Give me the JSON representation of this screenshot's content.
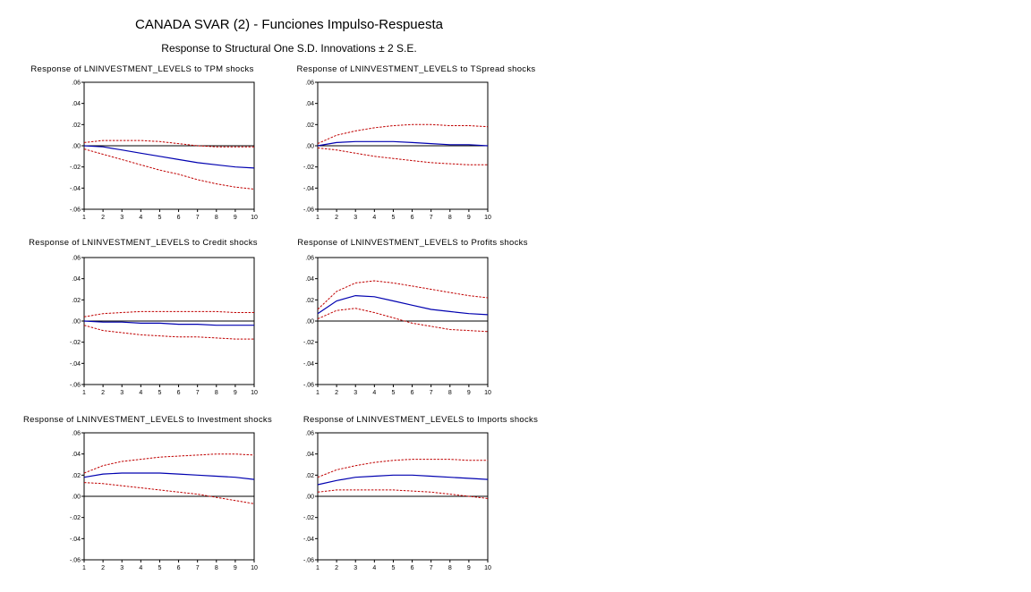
{
  "title": "CANADA SVAR (2) - Funciones Impulso-Respuesta",
  "subtitle": "Response to Structural One S.D. Innovations ± 2 S.E.",
  "colors": {
    "response": "#0000b0",
    "band": "#c00000",
    "zero": "#000000"
  },
  "chart_data": [
    {
      "type": "line",
      "title": "Response of LNINVESTMENT_LEVELS to TPM shocks",
      "x": [
        1,
        2,
        3,
        4,
        5,
        6,
        7,
        8,
        9,
        10
      ],
      "ylim": [
        -0.06,
        0.06
      ],
      "yticks": [
        ".06",
        ".04",
        ".02",
        ".00",
        "-.02",
        "-.04",
        "-.06"
      ],
      "series": [
        {
          "role": "response",
          "values": [
            0.0,
            -0.001,
            -0.004,
            -0.007,
            -0.01,
            -0.013,
            -0.016,
            -0.018,
            -0.02,
            -0.021
          ]
        },
        {
          "role": "upper",
          "values": [
            0.003,
            0.005,
            0.005,
            0.005,
            0.004,
            0.002,
            0.0,
            -0.001,
            -0.001,
            -0.001
          ]
        },
        {
          "role": "lower",
          "values": [
            -0.003,
            -0.008,
            -0.013,
            -0.018,
            -0.023,
            -0.027,
            -0.032,
            -0.036,
            -0.039,
            -0.041
          ]
        }
      ]
    },
    {
      "type": "line",
      "title": "Response of LNINVESTMENT_LEVELS to TSpread shocks",
      "x": [
        1,
        2,
        3,
        4,
        5,
        6,
        7,
        8,
        9,
        10
      ],
      "ylim": [
        -0.06,
        0.06
      ],
      "yticks": [
        ".06",
        ".04",
        ".02",
        ".00",
        "-.02",
        "-.04",
        "-.06"
      ],
      "series": [
        {
          "role": "response",
          "values": [
            0.0,
            0.003,
            0.004,
            0.004,
            0.004,
            0.003,
            0.002,
            0.001,
            0.001,
            0.0
          ]
        },
        {
          "role": "upper",
          "values": [
            0.002,
            0.01,
            0.014,
            0.017,
            0.019,
            0.02,
            0.02,
            0.019,
            0.019,
            0.018
          ]
        },
        {
          "role": "lower",
          "values": [
            -0.002,
            -0.004,
            -0.007,
            -0.01,
            -0.012,
            -0.014,
            -0.016,
            -0.017,
            -0.018,
            -0.018
          ]
        }
      ]
    },
    {
      "type": "line",
      "title": "Response of LNINVESTMENT_LEVELS to Credit shocks",
      "x": [
        1,
        2,
        3,
        4,
        5,
        6,
        7,
        8,
        9,
        10
      ],
      "ylim": [
        -0.06,
        0.06
      ],
      "yticks": [
        ".06",
        ".04",
        ".02",
        ".00",
        "-.02",
        "-.04",
        "-.06"
      ],
      "series": [
        {
          "role": "response",
          "values": [
            0.0,
            -0.001,
            -0.001,
            -0.002,
            -0.002,
            -0.003,
            -0.003,
            -0.004,
            -0.004,
            -0.004
          ]
        },
        {
          "role": "upper",
          "values": [
            0.004,
            0.007,
            0.008,
            0.009,
            0.009,
            0.009,
            0.009,
            0.009,
            0.008,
            0.008
          ]
        },
        {
          "role": "lower",
          "values": [
            -0.004,
            -0.009,
            -0.011,
            -0.013,
            -0.014,
            -0.015,
            -0.015,
            -0.016,
            -0.017,
            -0.017
          ]
        }
      ]
    },
    {
      "type": "line",
      "title": "Response of LNINVESTMENT_LEVELS to Profits shocks",
      "x": [
        1,
        2,
        3,
        4,
        5,
        6,
        7,
        8,
        9,
        10
      ],
      "ylim": [
        -0.06,
        0.06
      ],
      "yticks": [
        ".06",
        ".04",
        ".02",
        ".00",
        "-.02",
        "-.04",
        "-.06"
      ],
      "series": [
        {
          "role": "response",
          "values": [
            0.007,
            0.019,
            0.024,
            0.023,
            0.019,
            0.015,
            0.011,
            0.009,
            0.007,
            0.006
          ]
        },
        {
          "role": "upper",
          "values": [
            0.011,
            0.028,
            0.036,
            0.038,
            0.036,
            0.033,
            0.03,
            0.027,
            0.024,
            0.022
          ]
        },
        {
          "role": "lower",
          "values": [
            0.002,
            0.01,
            0.012,
            0.008,
            0.003,
            -0.002,
            -0.005,
            -0.008,
            -0.009,
            -0.01
          ]
        }
      ]
    },
    {
      "type": "line",
      "title": "Response of LNINVESTMENT_LEVELS to Investment shocks",
      "x": [
        1,
        2,
        3,
        4,
        5,
        6,
        7,
        8,
        9,
        10
      ],
      "ylim": [
        -0.06,
        0.06
      ],
      "yticks": [
        ".06",
        ".04",
        ".02",
        ".00",
        "-.02",
        "-.04",
        "-.06"
      ],
      "series": [
        {
          "role": "response",
          "values": [
            0.018,
            0.021,
            0.022,
            0.022,
            0.022,
            0.021,
            0.02,
            0.019,
            0.018,
            0.016
          ]
        },
        {
          "role": "upper",
          "values": [
            0.022,
            0.029,
            0.033,
            0.035,
            0.037,
            0.038,
            0.039,
            0.04,
            0.04,
            0.039
          ]
        },
        {
          "role": "lower",
          "values": [
            0.013,
            0.012,
            0.01,
            0.008,
            0.006,
            0.004,
            0.002,
            -0.001,
            -0.004,
            -0.007
          ]
        }
      ]
    },
    {
      "type": "line",
      "title": "Response of LNINVESTMENT_LEVELS to Imports shocks",
      "x": [
        1,
        2,
        3,
        4,
        5,
        6,
        7,
        8,
        9,
        10
      ],
      "ylim": [
        -0.06,
        0.06
      ],
      "yticks": [
        ".06",
        ".04",
        ".02",
        ".00",
        "-.02",
        "-.04",
        "-.06"
      ],
      "series": [
        {
          "role": "response",
          "values": [
            0.011,
            0.015,
            0.018,
            0.019,
            0.02,
            0.02,
            0.019,
            0.018,
            0.017,
            0.016
          ]
        },
        {
          "role": "upper",
          "values": [
            0.018,
            0.025,
            0.029,
            0.032,
            0.034,
            0.035,
            0.035,
            0.035,
            0.034,
            0.034
          ]
        },
        {
          "role": "lower",
          "values": [
            0.004,
            0.006,
            0.006,
            0.006,
            0.006,
            0.005,
            0.004,
            0.002,
            0.0,
            -0.002
          ]
        }
      ]
    }
  ]
}
